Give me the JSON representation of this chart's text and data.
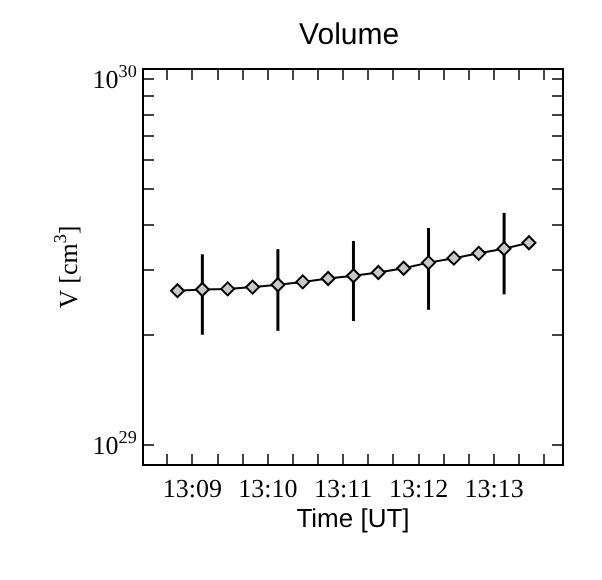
{
  "chart_data": {
    "type": "line",
    "title": "Volume",
    "xlabel": "Time [UT]",
    "ylabel": "V [cm$^{3}$]",
    "x": [
      13.1467,
      13.1522,
      13.1578,
      13.1633,
      13.1689,
      13.1744,
      13.18,
      13.1856,
      13.1911,
      13.1967,
      13.2022,
      13.2078,
      13.2133,
      13.2189,
      13.2244
    ],
    "values": [
      2.64e+29,
      2.66e+29,
      2.67e+29,
      2.7e+29,
      2.74e+29,
      2.79e+29,
      2.85e+29,
      2.9e+29,
      2.96e+29,
      3.04e+29,
      3.15e+29,
      3.24e+29,
      3.34e+29,
      3.44e+29,
      3.57e+29
    ],
    "errors": [
      null,
      [
        2e+29,
        3.32e+29
      ],
      null,
      null,
      [
        2.05e+29,
        3.43e+29
      ],
      null,
      null,
      [
        2.18e+29,
        3.61e+29
      ],
      null,
      null,
      [
        2.34e+29,
        3.92e+29
      ],
      null,
      null,
      [
        2.58e+29,
        4.31e+29
      ],
      null
    ],
    "color": "#000000",
    "marker": "diamond",
    "line_style": "solid",
    "log": "y",
    "legend": false,
    "xlim": [
      13.1393,
      13.2317
    ],
    "xticks": [
      {
        "value": 13.15,
        "label": "13:09"
      },
      {
        "value": 13.1667,
        "label": "13:10"
      },
      {
        "value": 13.1833,
        "label": "13:11"
      },
      {
        "value": 13.2,
        "label": "13:12"
      },
      {
        "value": 13.2167,
        "label": "13:13"
      },
      {
        "value": 13.1444,
        "label": null
      },
      {
        "value": 13.1556,
        "label": null
      },
      {
        "value": 13.1611,
        "label": null
      },
      {
        "value": 13.1722,
        "label": null
      },
      {
        "value": 13.1778,
        "label": null
      },
      {
        "value": 13.1889,
        "label": null
      },
      {
        "value": 13.1944,
        "label": null
      },
      {
        "value": 13.2056,
        "label": null
      },
      {
        "value": 13.2111,
        "label": null
      },
      {
        "value": 13.2222,
        "label": null
      },
      {
        "value": 13.2278,
        "label": null
      }
    ],
    "ylim": [
      8.86e+28,
      1.06e+30
    ],
    "yticks": [
      {
        "value": 1e+29,
        "label": "10$^{29}$"
      },
      {
        "value": 1e+30,
        "label": "10$^{30}$"
      },
      {
        "value": 2e+29,
        "label": null
      },
      {
        "value": 3e+29,
        "label": null
      },
      {
        "value": 4e+29,
        "label": null
      },
      {
        "value": 5e+29,
        "label": null
      },
      {
        "value": 6e+29,
        "label": null
      },
      {
        "value": 7e+29,
        "label": null
      },
      {
        "value": 8e+29,
        "label": null
      },
      {
        "value": 9e+29,
        "label": null
      }
    ]
  }
}
